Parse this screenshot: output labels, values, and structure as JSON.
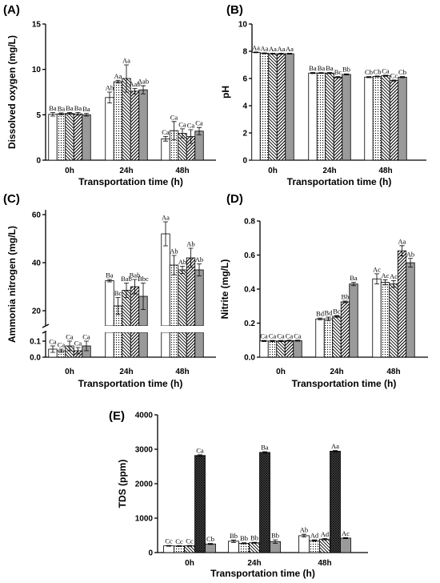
{
  "chart_data": [
    {
      "panel": "(A)",
      "type": "bar",
      "ylabel": "Dissolved oxygen (mg/L)",
      "xlabel": "Transportation time (h)",
      "categories": [
        "0h",
        "24h",
        "48h"
      ],
      "yticks": [
        "0",
        "5",
        "10",
        "15"
      ],
      "ylim": [
        0,
        15
      ],
      "series": [
        {
          "fill": "white",
          "values": [
            5.05,
            6.9,
            2.35
          ],
          "errors": [
            0.2,
            0.6,
            0.25
          ],
          "labels": [
            "Ba",
            "Ab",
            "Ca"
          ]
        },
        {
          "fill": "dots",
          "values": [
            5.1,
            8.65,
            3.25
          ],
          "errors": [
            0.1,
            0.15,
            1.0
          ],
          "labels": [
            "Ba",
            "Aa",
            "Ca"
          ]
        },
        {
          "fill": "hatch-back",
          "values": [
            5.15,
            9.0,
            2.95
          ],
          "errors": [
            0.1,
            1.5,
            0.5
          ],
          "labels": [
            "Ba",
            "Aa",
            "Ca"
          ]
        },
        {
          "fill": "hatch-fwd",
          "values": [
            5.1,
            7.6,
            2.6
          ],
          "errors": [
            0.15,
            0.3,
            0.75
          ],
          "labels": [
            "Ba",
            "Aab",
            "Ca"
          ]
        },
        {
          "fill": "gray",
          "values": [
            5.0,
            7.75,
            3.2
          ],
          "errors": [
            0.15,
            0.45,
            0.4
          ],
          "labels": [
            "Ba",
            "Aab",
            "Ca"
          ]
        }
      ]
    },
    {
      "panel": "(B)",
      "type": "bar",
      "ylabel": "pH",
      "xlabel": "Transportation time (h)",
      "categories": [
        "0h",
        "24h",
        "48h"
      ],
      "yticks": [
        "0",
        "2",
        "4",
        "6",
        "8",
        "10"
      ],
      "ylim": [
        0,
        10
      ],
      "series": [
        {
          "fill": "white",
          "values": [
            7.92,
            6.4,
            6.1
          ],
          "errors": [
            0.03,
            0.04,
            0.04
          ],
          "labels": [
            "Aa",
            "Ba",
            "Cb"
          ]
        },
        {
          "fill": "dots",
          "values": [
            7.85,
            6.4,
            6.15
          ],
          "errors": [
            0.03,
            0.03,
            0.03
          ],
          "labels": [
            "Aa",
            "Ba",
            "Cb"
          ]
        },
        {
          "fill": "hatch-back",
          "values": [
            7.82,
            6.4,
            6.2
          ],
          "errors": [
            0.03,
            0.04,
            0.04
          ],
          "labels": [
            "Aa",
            "Ba",
            "Ca"
          ]
        },
        {
          "fill": "hatch-fwd",
          "values": [
            7.82,
            6.1,
            5.85
          ],
          "errors": [
            0.03,
            0.04,
            0.04
          ],
          "labels": [
            "Aa",
            "Bc",
            "Cc"
          ]
        },
        {
          "fill": "gray",
          "values": [
            7.82,
            6.3,
            6.1
          ],
          "errors": [
            0.03,
            0.04,
            0.04
          ],
          "labels": [
            "Aa",
            "Bb",
            "Cb"
          ]
        }
      ]
    },
    {
      "panel": "(C)",
      "type": "bar",
      "ylabel": "Ammonia nitrogen (mg/L)",
      "xlabel": "Transportation time (h)",
      "categories": [
        "0h",
        "24h",
        "48h"
      ],
      "yticks_lower": [
        "0.0",
        "0.1"
      ],
      "yticks_upper": [
        "20",
        "40",
        "60"
      ],
      "axis_break": true,
      "series": [
        {
          "fill": "white",
          "values": [
            0.05,
            32.5,
            52.0
          ],
          "errors": [
            0.02,
            0.5,
            5.0
          ],
          "labels": [
            "Ca",
            "Ba",
            "Aa"
          ]
        },
        {
          "fill": "dots",
          "values": [
            0.04,
            22.0,
            39.0
          ],
          "errors": [
            0.01,
            3.5,
            4.0
          ],
          "labels": [
            "Ca",
            "Bc",
            "Ab"
          ]
        },
        {
          "fill": "hatch-back",
          "values": [
            0.07,
            28.5,
            37.0
          ],
          "errors": [
            0.03,
            3.0,
            1.5
          ],
          "labels": [
            "Ca",
            "Bab",
            "Ab"
          ]
        },
        {
          "fill": "hatch-fwd",
          "values": [
            0.04,
            30.0,
            42.0
          ],
          "errors": [
            0.02,
            3.0,
            4.0
          ],
          "labels": [
            "Ca",
            "Bab",
            "Ab"
          ]
        },
        {
          "fill": "gray",
          "values": [
            0.07,
            26.0,
            37.0
          ],
          "errors": [
            0.03,
            5.5,
            2.5
          ],
          "labels": [
            "Ca",
            "Bbc",
            "Ab"
          ]
        }
      ]
    },
    {
      "panel": "(D)",
      "type": "bar",
      "ylabel": "Nitrite (mg/L)",
      "xlabel": "Transportation time (h)",
      "categories": [
        "0h",
        "24h",
        "48h"
      ],
      "yticks": [
        "0.0",
        "0.2",
        "0.4",
        "0.6",
        "0.8"
      ],
      "ylim": [
        0,
        0.8
      ],
      "series": [
        {
          "fill": "white",
          "values": [
            0.095,
            0.225,
            0.46
          ],
          "errors": [
            0.003,
            0.005,
            0.03
          ],
          "labels": [
            "Ca",
            "Bd",
            "Ac"
          ]
        },
        {
          "fill": "dots",
          "values": [
            0.095,
            0.225,
            0.44
          ],
          "errors": [
            0.003,
            0.01,
            0.015
          ],
          "labels": [
            "Ca",
            "Bd",
            "Ac"
          ]
        },
        {
          "fill": "hatch-back",
          "values": [
            0.095,
            0.24,
            0.43
          ],
          "errors": [
            0.003,
            0.005,
            0.02
          ],
          "labels": [
            "Ca",
            "Bc",
            "Ac"
          ]
        },
        {
          "fill": "hatch-fwd",
          "values": [
            0.097,
            0.325,
            0.625
          ],
          "errors": [
            0.003,
            0.005,
            0.03
          ],
          "labels": [
            "Ca",
            "Bb",
            "Aa"
          ]
        },
        {
          "fill": "gray",
          "values": [
            0.097,
            0.43,
            0.555
          ],
          "errors": [
            0.003,
            0.01,
            0.025
          ],
          "labels": [
            "Ca",
            "Ba",
            "Ab"
          ]
        }
      ]
    },
    {
      "panel": "(E)",
      "type": "bar",
      "ylabel": "TDS (ppm)",
      "xlabel": "Transportation time (h)",
      "categories": [
        "0h",
        "24h",
        "48h"
      ],
      "yticks": [
        "0",
        "1000",
        "2000",
        "3000",
        "4000"
      ],
      "ylim": [
        0,
        4000
      ],
      "series": [
        {
          "fill": "white",
          "values": [
            195,
            330,
            490
          ],
          "errors": [
            10,
            35,
            40
          ],
          "labels": [
            "Cc",
            "Bb",
            "Ab"
          ]
        },
        {
          "fill": "dots",
          "values": [
            190,
            270,
            350
          ],
          "errors": [
            10,
            15,
            20
          ],
          "labels": [
            "Cc",
            "Bb",
            "Ad"
          ]
        },
        {
          "fill": "hatch-back",
          "values": [
            195,
            285,
            390
          ],
          "errors": [
            10,
            15,
            20
          ],
          "labels": [
            "Cc",
            "Bb",
            "Ad"
          ]
        },
        {
          "fill": "checker",
          "values": [
            2820,
            2910,
            2945
          ],
          "errors": [
            20,
            20,
            20
          ],
          "labels": [
            "Ca",
            "Ba",
            "Aa"
          ]
        },
        {
          "fill": "gray",
          "values": [
            250,
            320,
            420
          ],
          "errors": [
            15,
            50,
            15
          ],
          "labels": [
            "Cb",
            "Bb",
            "Ac"
          ]
        }
      ]
    }
  ]
}
